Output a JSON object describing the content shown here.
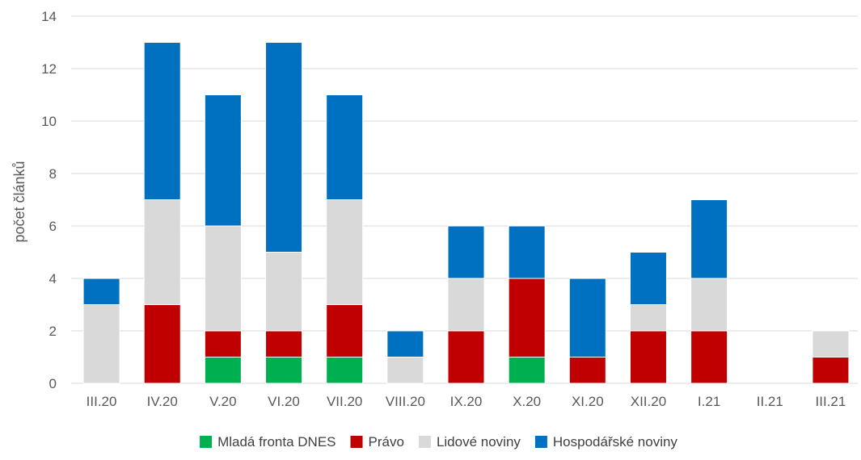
{
  "chart_data": {
    "type": "bar",
    "stacked": true,
    "title": "",
    "xlabel": "",
    "ylabel": "počet článků",
    "ylim": [
      0,
      14
    ],
    "yticks": [
      "0",
      "2",
      "4",
      "6",
      "8",
      "10",
      "12",
      "14"
    ],
    "grid": true,
    "legend_position": "bottom",
    "categories": [
      "III.20",
      "IV.20",
      "V.20",
      "VI.20",
      "VII.20",
      "VIII.20",
      "IX.20",
      "X.20",
      "XI.20",
      "XII.20",
      "I.21",
      "II.21",
      "III.21"
    ],
    "series": [
      {
        "name": "Mladá fronta DNES",
        "color": "#00b050",
        "values": [
          0,
          0,
          1,
          1,
          1,
          0,
          0,
          1,
          0,
          0,
          0,
          0,
          0
        ]
      },
      {
        "name": "Právo",
        "color": "#c00000",
        "values": [
          0,
          3,
          1,
          1,
          2,
          0,
          2,
          3,
          1,
          2,
          2,
          0,
          1
        ]
      },
      {
        "name": "Lidové noviny",
        "color": "#d9d9d9",
        "values": [
          3,
          4,
          4,
          3,
          4,
          1,
          2,
          0,
          0,
          1,
          2,
          0,
          1
        ]
      },
      {
        "name": "Hospodářské noviny",
        "color": "#0070c0",
        "values": [
          1,
          6,
          5,
          8,
          4,
          1,
          2,
          2,
          3,
          2,
          3,
          0,
          0
        ]
      }
    ]
  }
}
